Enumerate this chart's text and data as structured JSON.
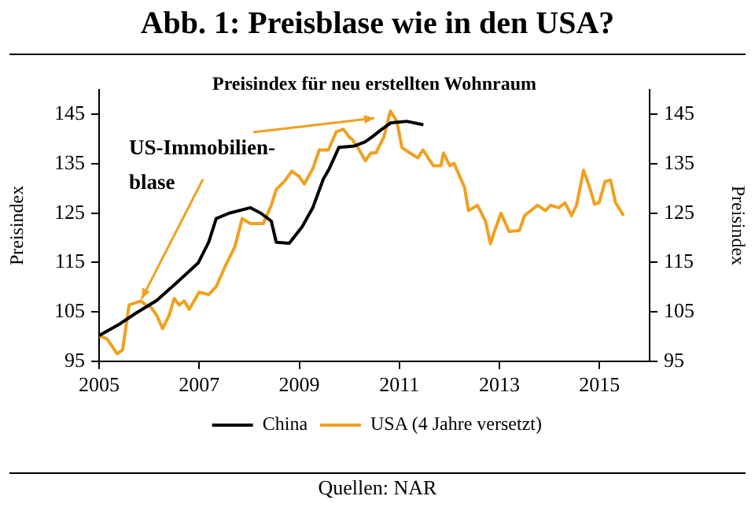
{
  "chart_data": {
    "type": "line",
    "title": "Abb. 1: Preisblase wie in den USA?",
    "subtitle": "Preisindex für neu erstellten Wohnraum",
    "ylabel": "Preisindex",
    "y2label": "Preisindex",
    "annotations": [
      {
        "text": "US-Immobilien-blase",
        "x": 2005.85,
        "y": 107
      },
      "Quellen: NAR"
    ],
    "xlim": [
      2005,
      2016
    ],
    "xticks": [
      2005,
      2007,
      2009,
      2011,
      2013,
      2015
    ],
    "ylim": [
      95,
      150
    ],
    "yticks": [
      95,
      105,
      115,
      125,
      135,
      145
    ],
    "y2lim": [
      95,
      150
    ],
    "y2ticks": [
      95,
      105,
      115,
      125,
      135,
      145
    ],
    "grid": false,
    "legend": "bottom",
    "marker": "none",
    "line_style": "solid",
    "series": [
      {
        "name": "China",
        "color": "#000000",
        "x": [
          2005.0,
          2005.42,
          2005.73,
          2006.15,
          2006.56,
          2006.98,
          2007.19,
          2007.34,
          2007.6,
          2008.02,
          2008.23,
          2008.44,
          2008.54,
          2008.8,
          2009.06,
          2009.27,
          2009.48,
          2009.6,
          2009.79,
          2010.1,
          2010.31,
          2010.45,
          2010.65,
          2010.83,
          2011.15,
          2011.48
        ],
        "values": [
          100.2,
          102.6,
          104.7,
          107.3,
          111,
          114.9,
          119.1,
          123.9,
          125,
          126.1,
          125,
          123.4,
          119.1,
          118.9,
          122.3,
          126.1,
          131.9,
          134,
          138.3,
          138.6,
          139.4,
          140.4,
          142,
          143.3,
          143.6,
          142.9
        ]
      },
      {
        "name": "USA (4 Jahre versetzt)",
        "color": "#f0a020",
        "x": [
          2005.0,
          2005.16,
          2005.36,
          2005.47,
          2005.6,
          2005.83,
          2005.94,
          2006.04,
          2006.15,
          2006.27,
          2006.4,
          2006.5,
          2006.6,
          2006.7,
          2006.8,
          2007.0,
          2007.19,
          2007.34,
          2007.5,
          2007.71,
          2007.86,
          2008.02,
          2008.28,
          2008.44,
          2008.54,
          2008.7,
          2008.85,
          2009.0,
          2009.1,
          2009.27,
          2009.4,
          2009.58,
          2009.74,
          2009.88,
          2010.0,
          2010.06,
          2010.17,
          2010.32,
          2010.43,
          2010.53,
          2010.69,
          2010.82,
          2010.95,
          2011.05,
          2011.21,
          2011.37,
          2011.47,
          2011.68,
          2011.83,
          2011.88,
          2012.01,
          2012.09,
          2012.3,
          2012.38,
          2012.56,
          2012.72,
          2012.82,
          2012.9,
          2013.03,
          2013.19,
          2013.4,
          2013.5,
          2013.76,
          2013.92,
          2014.02,
          2014.18,
          2014.31,
          2014.44,
          2014.54,
          2014.68,
          2014.8,
          2014.9,
          2014.99,
          2015.11,
          2015.22,
          2015.32,
          2015.48
        ],
        "values": [
          100.2,
          99.5,
          96.5,
          97.3,
          106.4,
          107.2,
          106.4,
          105.9,
          104.3,
          101.6,
          104.3,
          107.7,
          106.4,
          107.2,
          105.5,
          109,
          108.5,
          110.1,
          113.8,
          118.1,
          123.9,
          122.9,
          122.9,
          126.6,
          129.8,
          131.4,
          133.5,
          132.4,
          130.9,
          134,
          137.8,
          137.8,
          141.5,
          142,
          140.4,
          139.9,
          138.3,
          135.6,
          137.2,
          137.2,
          140.4,
          145.7,
          143.6,
          138.3,
          137.2,
          136.2,
          137.8,
          134.6,
          134.6,
          137.2,
          134.6,
          135.1,
          130.3,
          125.5,
          126.6,
          123.4,
          118.8,
          121.3,
          125,
          121.3,
          121.5,
          124.5,
          126.6,
          125.5,
          126.6,
          126.1,
          127.1,
          124.5,
          126.6,
          133.7,
          130.3,
          126.8,
          127.1,
          131.4,
          131.7,
          127.1,
          124.5
        ]
      }
    ]
  }
}
